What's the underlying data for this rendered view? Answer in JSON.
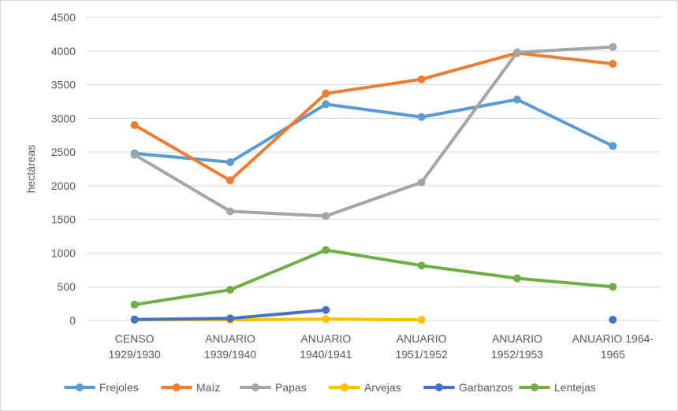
{
  "chart_data": {
    "type": "line",
    "title": "",
    "xlabel": "",
    "ylabel": "hectáreas",
    "ylim": [
      0,
      4500
    ],
    "y_ticks": [
      0,
      500,
      1000,
      1500,
      2000,
      2500,
      3000,
      3500,
      4000,
      4500
    ],
    "grid": true,
    "legend_position": "bottom",
    "categories": [
      [
        "CENSO",
        "1929/1930"
      ],
      [
        "ANUARIO",
        "1939/1940"
      ],
      [
        "ANUARIO",
        "1940/1941"
      ],
      [
        "ANUARIO",
        "1951/1952"
      ],
      [
        "ANUARIO",
        "1952/1953"
      ],
      [
        "ANUARIO 1964-",
        "1965"
      ]
    ],
    "series": [
      {
        "name": "Frejoles",
        "color": "#5b9bd5",
        "values": [
          2480,
          2350,
          3210,
          3020,
          3280,
          2590
        ]
      },
      {
        "name": "Maíz",
        "color": "#ed7d31",
        "values": [
          2900,
          2080,
          3370,
          3580,
          3970,
          3810
        ]
      },
      {
        "name": "Papas",
        "color": "#a5a5a5",
        "values": [
          2460,
          1620,
          1550,
          2050,
          3980,
          4060
        ]
      },
      {
        "name": "Arvejas",
        "color": "#ffc000",
        "values": [
          10,
          10,
          20,
          10,
          null,
          null
        ]
      },
      {
        "name": "Garbanzos",
        "color": "#4472c4",
        "values": [
          15,
          30,
          155,
          null,
          null,
          10
        ]
      },
      {
        "name": "Lentejas",
        "color": "#70ad47",
        "values": [
          235,
          455,
          1045,
          815,
          625,
          500
        ]
      }
    ]
  }
}
